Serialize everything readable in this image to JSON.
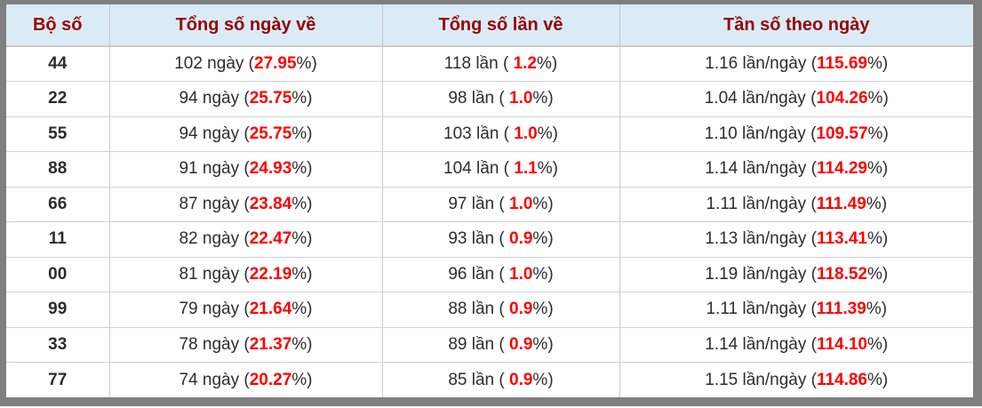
{
  "table": {
    "columns": [
      "Bộ số",
      "Tổng số ngày về",
      "Tổng số lần về",
      "Tần số theo ngày"
    ],
    "units": {
      "days": "ngày",
      "times": "lần",
      "freq": "lần/ngày",
      "open": "(",
      "open_spaced": "( ",
      "close": "%)"
    },
    "rows": [
      {
        "set": "44",
        "days": "102",
        "days_pct": "27.95",
        "times": "118",
        "times_pct": "1.2",
        "freq": "1.16",
        "freq_pct": "115.69"
      },
      {
        "set": "22",
        "days": "94",
        "days_pct": "25.75",
        "times": "98",
        "times_pct": "1.0",
        "freq": "1.04",
        "freq_pct": "104.26"
      },
      {
        "set": "55",
        "days": "94",
        "days_pct": "25.75",
        "times": "103",
        "times_pct": "1.0",
        "freq": "1.10",
        "freq_pct": "109.57"
      },
      {
        "set": "88",
        "days": "91",
        "days_pct": "24.93",
        "times": "104",
        "times_pct": "1.1",
        "freq": "1.14",
        "freq_pct": "114.29"
      },
      {
        "set": "66",
        "days": "87",
        "days_pct": "23.84",
        "times": "97",
        "times_pct": "1.0",
        "freq": "1.11",
        "freq_pct": "111.49"
      },
      {
        "set": "11",
        "days": "82",
        "days_pct": "22.47",
        "times": "93",
        "times_pct": "0.9",
        "freq": "1.13",
        "freq_pct": "113.41"
      },
      {
        "set": "00",
        "days": "81",
        "days_pct": "22.19",
        "times": "96",
        "times_pct": "1.0",
        "freq": "1.19",
        "freq_pct": "118.52"
      },
      {
        "set": "99",
        "days": "79",
        "days_pct": "21.64",
        "times": "88",
        "times_pct": "0.9",
        "freq": "1.11",
        "freq_pct": "111.39"
      },
      {
        "set": "33",
        "days": "78",
        "days_pct": "21.37",
        "times": "89",
        "times_pct": "0.9",
        "freq": "1.14",
        "freq_pct": "114.10"
      },
      {
        "set": "77",
        "days": "74",
        "days_pct": "20.27",
        "times": "85",
        "times_pct": "0.9",
        "freq": "1.15",
        "freq_pct": "114.86"
      }
    ]
  },
  "colors": {
    "header_bg": "#d9ecf6",
    "header_text": "#990000",
    "highlight_red": "#fe0000",
    "body_text": "#2d2d2d",
    "frame_gray": "#7f7f7f",
    "divider": "#cccccc"
  }
}
